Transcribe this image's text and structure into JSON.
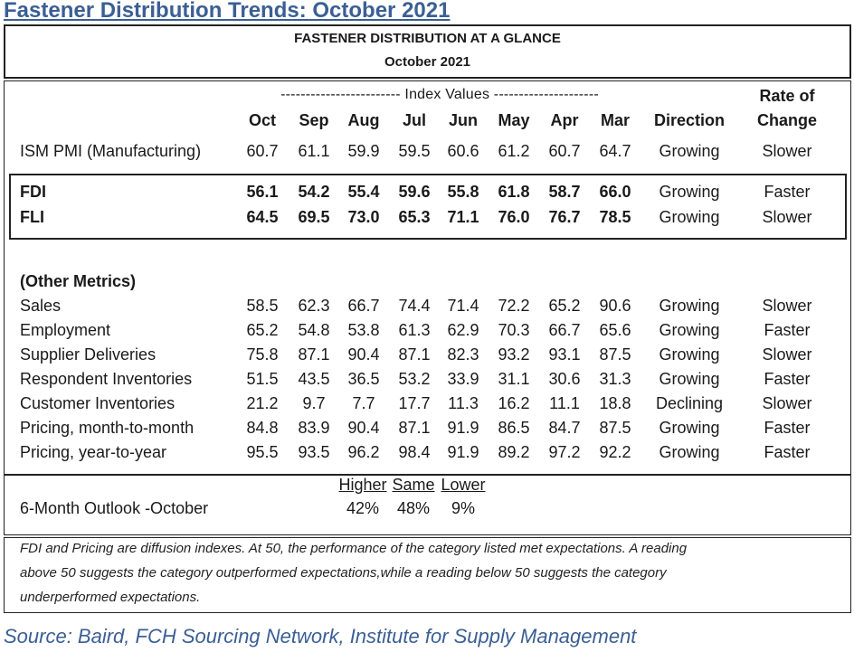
{
  "page_title": "Fastener Distribution Trends: October 2021",
  "header": {
    "line1": "FASTENER DISTRIBUTION AT A GLANCE",
    "line2": "October 2021"
  },
  "columns": {
    "index_values_label": "------------------------ Index Values ---------------------",
    "rate_label_1": "Rate of",
    "rate_label_2": "Change",
    "months": [
      "Oct",
      "Sep",
      "Aug",
      "Jul",
      "Jun",
      "May",
      "Apr",
      "Mar"
    ],
    "direction": "Direction"
  },
  "ism": {
    "label": "ISM PMI (Manufacturing)",
    "values": [
      "60.7",
      "61.1",
      "59.9",
      "59.5",
      "60.6",
      "61.2",
      "60.7",
      "64.7"
    ],
    "direction": "Growing",
    "rate": "Slower"
  },
  "highlight": [
    {
      "label": "FDI",
      "values": [
        "56.1",
        "54.2",
        "55.4",
        "59.6",
        "55.8",
        "61.8",
        "58.7",
        "66.0"
      ],
      "direction": "Growing",
      "rate": "Faster"
    },
    {
      "label": "FLI",
      "values": [
        "64.5",
        "69.5",
        "73.0",
        "65.3",
        "71.1",
        "76.0",
        "76.7",
        "78.5"
      ],
      "direction": "Growing",
      "rate": "Slower"
    }
  ],
  "other_metrics_label": "(Other Metrics)",
  "other": [
    {
      "label": "Sales",
      "values": [
        "58.5",
        "62.3",
        "66.7",
        "74.4",
        "71.4",
        "72.2",
        "65.2",
        "90.6"
      ],
      "direction": "Growing",
      "rate": "Slower"
    },
    {
      "label": "Employment",
      "values": [
        "65.2",
        "54.8",
        "53.8",
        "61.3",
        "62.9",
        "70.3",
        "66.7",
        "65.6"
      ],
      "direction": "Growing",
      "rate": "Faster"
    },
    {
      "label": "Supplier Deliveries",
      "values": [
        "75.8",
        "87.1",
        "90.4",
        "87.1",
        "82.3",
        "93.2",
        "93.1",
        "87.5"
      ],
      "direction": "Growing",
      "rate": "Slower"
    },
    {
      "label": "Respondent Inventories",
      "values": [
        "51.5",
        "43.5",
        "36.5",
        "53.2",
        "33.9",
        "31.1",
        "30.6",
        "31.3"
      ],
      "direction": "Growing",
      "rate": "Faster"
    },
    {
      "label": "Customer Inventories",
      "values": [
        "21.2",
        "9.7",
        "7.7",
        "17.7",
        "11.3",
        "16.2",
        "11.1",
        "18.8"
      ],
      "direction": "Declining",
      "rate": "Slower"
    },
    {
      "label": "Pricing, month-to-month",
      "values": [
        "84.8",
        "83.9",
        "90.4",
        "87.1",
        "91.9",
        "86.5",
        "84.7",
        "87.5"
      ],
      "direction": "Growing",
      "rate": "Faster"
    },
    {
      "label": "Pricing, year-to-year",
      "values": [
        "95.5",
        "93.5",
        "96.2",
        "98.4",
        "91.9",
        "89.2",
        "97.2",
        "92.2"
      ],
      "direction": "Growing",
      "rate": "Faster"
    }
  ],
  "outlook": {
    "label": "6-Month Outlook -October",
    "higher_label": "Higher",
    "same_label": "Same",
    "lower_label": "Lower",
    "higher": "42%",
    "same": "48%",
    "lower": "9%"
  },
  "footnote": {
    "line1": "FDI and Pricing are diffusion indexes.  At 50, the performance of the category listed met expectations. A reading",
    "line2": "above 50 suggests the category outperformed expectations,while a reading below 50 suggests the category",
    "line3": "underperformed expectations."
  },
  "source": "Source: Baird, FCH Sourcing Network, Institute for Supply Management"
}
